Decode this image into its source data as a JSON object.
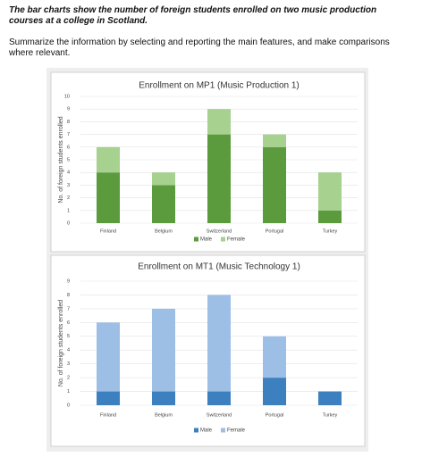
{
  "header": {
    "prompt": "The bar charts show the number of foreign students enrolled on two music production courses at a college in Scotland.",
    "task": "Summarize the information by selecting and reporting the main features, and make comparisons where relevant."
  },
  "chart_data": [
    {
      "type": "bar",
      "stacked": true,
      "title": "Enrollment on MP1 (Music Production 1)",
      "ylabel": "No. of foreign students enrolled",
      "categories": [
        "Finland",
        "Belgium",
        "Switzerland",
        "Portugal",
        "Turkey"
      ],
      "series": [
        {
          "name": "Male",
          "color": "#5b9b3d",
          "values": [
            4,
            3,
            7,
            6,
            1
          ]
        },
        {
          "name": "Female",
          "color": "#a6d18f",
          "values": [
            2,
            1,
            2,
            1,
            3
          ]
        }
      ],
      "ylim": [
        0,
        10
      ],
      "yticks": [
        0,
        1,
        2,
        3,
        4,
        5,
        6,
        7,
        8,
        9,
        10
      ],
      "grid": true
    },
    {
      "type": "bar",
      "stacked": true,
      "title": "Enrollment on MT1 (Music Technology 1)",
      "ylabel": "No. of foreign students enrolled",
      "categories": [
        "Finland",
        "Belgium",
        "Switzerland",
        "Portugal",
        "Turkey"
      ],
      "series": [
        {
          "name": "Male",
          "color": "#3d80c0",
          "values": [
            1,
            1,
            1,
            2,
            1
          ]
        },
        {
          "name": "Female",
          "color": "#9dbfe6",
          "values": [
            5,
            6,
            7,
            3,
            0
          ]
        }
      ],
      "ylim": [
        0,
        9
      ],
      "yticks": [
        0,
        1,
        2,
        3,
        4,
        5,
        6,
        7,
        8,
        9
      ],
      "grid": true
    }
  ]
}
